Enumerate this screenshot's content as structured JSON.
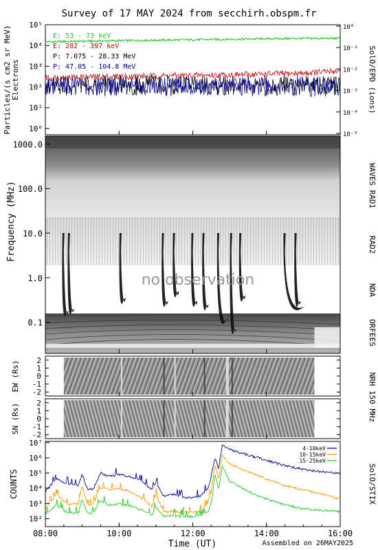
{
  "title": "Survey of 17 MAY 2024 from secchirh.obspm.fr",
  "footer": "Assembled on 26MAY2025",
  "chart_data": [
    {
      "id": "epd",
      "type": "line",
      "ylabel": "Particles/(s cm2 sr MeV)",
      "ylabel2": "Electrons",
      "right_label": "SolO/EPD (ions)",
      "yscale": "log",
      "ylim": [
        0.5,
        100000
      ],
      "yticks": [
        "10⁰",
        "10¹",
        "10²",
        "10³",
        "10⁴",
        "10⁵"
      ],
      "yticks_right": [
        "10⁻⁵",
        "10⁻⁴",
        "10⁻³",
        "10⁻²",
        "10⁻¹",
        "10⁰"
      ],
      "series": [
        {
          "name": "E: 53 - 73 keV",
          "color": "#22cc22",
          "x": [
            8,
            9,
            10,
            11,
            12,
            13,
            14,
            15,
            16
          ],
          "values": [
            15000,
            16000,
            17000,
            18000,
            19000,
            20000,
            21000,
            22000,
            22000
          ]
        },
        {
          "name": "E: 282 - 397 keV",
          "color": "#cc0000",
          "x": [
            8,
            9,
            10,
            11,
            12,
            13,
            14,
            15,
            16
          ],
          "values": [
            280,
            300,
            320,
            340,
            360,
            380,
            420,
            460,
            600
          ]
        },
        {
          "name": "P: 7.075 - 28.33 MeV",
          "color": "#000000",
          "x": [
            8,
            10,
            12,
            14,
            16
          ],
          "values": [
            200,
            200,
            200,
            200,
            200
          ]
        },
        {
          "name": "P: 47.05 - 104.8 MeV",
          "color": "#000099",
          "x": [
            8,
            10,
            12,
            14,
            16
          ],
          "values": [
            180,
            180,
            180,
            180,
            180
          ]
        }
      ]
    },
    {
      "id": "radio",
      "type": "heatmap",
      "ylabel": "Frequency (MHz)",
      "yscale": "log",
      "ylim": [
        0.02,
        1500
      ],
      "yticks": [
        "0.1",
        "1.0",
        "10.0",
        "100.0",
        "1000.0"
      ],
      "bands": [
        "WAVES RAD1",
        "RAD2",
        "NDA",
        "ORFEES"
      ],
      "annotation": "no observation",
      "bursts": [
        {
          "t": 8.5,
          "f_top": 0.18
        },
        {
          "t": 8.65,
          "f_top": 0.2
        },
        {
          "t": 10.05,
          "f_top": 0.35
        },
        {
          "t": 11.2,
          "f_top": 0.3
        },
        {
          "t": 11.5,
          "f_top": 0.5
        },
        {
          "t": 12.0,
          "f_top": 0.3
        },
        {
          "t": 12.3,
          "f_top": 0.25
        },
        {
          "t": 12.7,
          "f_top": 0.12
        },
        {
          "t": 13.05,
          "f_top": 0.07
        },
        {
          "t": 13.3,
          "f_top": 0.4
        },
        {
          "t": 14.5,
          "f_top": 0.25
        },
        {
          "t": 14.8,
          "f_top": 0.3
        }
      ]
    },
    {
      "id": "nrh_ew",
      "type": "heatmap",
      "ylabel": "EW (Rs)",
      "ylim": [
        -2.5,
        2.5
      ],
      "yticks": [
        "2",
        "1",
        "0",
        "-1",
        "-2"
      ],
      "data_range": [
        8.5,
        15.3
      ]
    },
    {
      "id": "nrh_sn",
      "type": "heatmap",
      "ylabel": "SN (Rs)",
      "ylim": [
        -2.5,
        2.5
      ],
      "yticks": [
        "2",
        "1",
        "0",
        "-1",
        "-2"
      ],
      "data_range": [
        8.5,
        15.3
      ],
      "right_label": "NRH 150 MHz"
    },
    {
      "id": "stix",
      "type": "line",
      "ylabel": "COUNTS",
      "right_label": "SolO/STIX",
      "yscale": "log",
      "ylim": [
        30,
        12000000
      ],
      "yticks": [
        "10²",
        "10³",
        "10⁴",
        "10⁵",
        "10⁶",
        "10⁷"
      ],
      "xlabel": "Time (UT)",
      "xlim": [
        8,
        16
      ],
      "xticks": [
        "08:00",
        "10:00",
        "12:00",
        "14:00",
        "16:00"
      ],
      "series": [
        {
          "name": "4-10keV",
          "color": "#000099",
          "x": [
            8.0,
            8.3,
            8.6,
            8.9,
            9.0,
            9.15,
            9.3,
            9.5,
            9.7,
            10.0,
            10.3,
            10.6,
            10.9,
            11.0,
            11.2,
            11.5,
            11.8,
            12.0,
            12.2,
            12.4,
            12.5,
            12.6,
            12.7,
            12.8,
            13.0,
            13.5,
            14.0,
            14.5,
            15.0,
            15.5,
            16.0
          ],
          "values": [
            6000,
            40000,
            20000,
            15000,
            80000,
            8000,
            9000,
            100000,
            60000,
            80000,
            60000,
            30000,
            8000,
            30000,
            3000,
            4000,
            2500,
            2500,
            3000,
            8000,
            60000,
            1000000,
            200000,
            7000000,
            3500000,
            1500000,
            700000,
            300000,
            180000,
            120000,
            90000
          ]
        },
        {
          "name": "10-15keV",
          "color": "#ff9900",
          "x": [
            8.0,
            8.3,
            8.6,
            8.9,
            9.0,
            9.15,
            9.3,
            9.5,
            9.7,
            10.0,
            10.3,
            10.6,
            10.9,
            11.0,
            11.2,
            11.5,
            11.8,
            12.0,
            12.2,
            12.4,
            12.5,
            12.6,
            12.7,
            12.8,
            13.0,
            13.5,
            14.0,
            14.5,
            15.0,
            15.5,
            16.0
          ],
          "values": [
            400,
            4000,
            900,
            900,
            15000,
            700,
            900,
            12000,
            8000,
            9000,
            6000,
            2500,
            600,
            4000,
            300,
            300,
            250,
            250,
            300,
            900,
            6000,
            400000,
            40000,
            1500000,
            400000,
            120000,
            40000,
            15000,
            8000,
            4000,
            2000
          ]
        },
        {
          "name": "15-25keV",
          "color": "#22cc22",
          "x": [
            8.0,
            8.3,
            8.6,
            8.9,
            9.0,
            9.15,
            9.3,
            9.5,
            9.7,
            10.0,
            10.3,
            10.6,
            10.9,
            11.0,
            11.2,
            11.5,
            11.8,
            12.0,
            12.2,
            12.4,
            12.5,
            12.6,
            12.7,
            12.8,
            13.0,
            13.5,
            14.0,
            14.5,
            15.0,
            15.5,
            16.0
          ],
          "values": [
            150,
            800,
            250,
            250,
            2000,
            200,
            250,
            1500,
            800,
            900,
            700,
            400,
            180,
            600,
            150,
            150,
            140,
            140,
            150,
            250,
            900,
            80000,
            8000,
            300000,
            30000,
            6000,
            2000,
            800,
            450,
            350,
            300
          ]
        }
      ]
    }
  ]
}
